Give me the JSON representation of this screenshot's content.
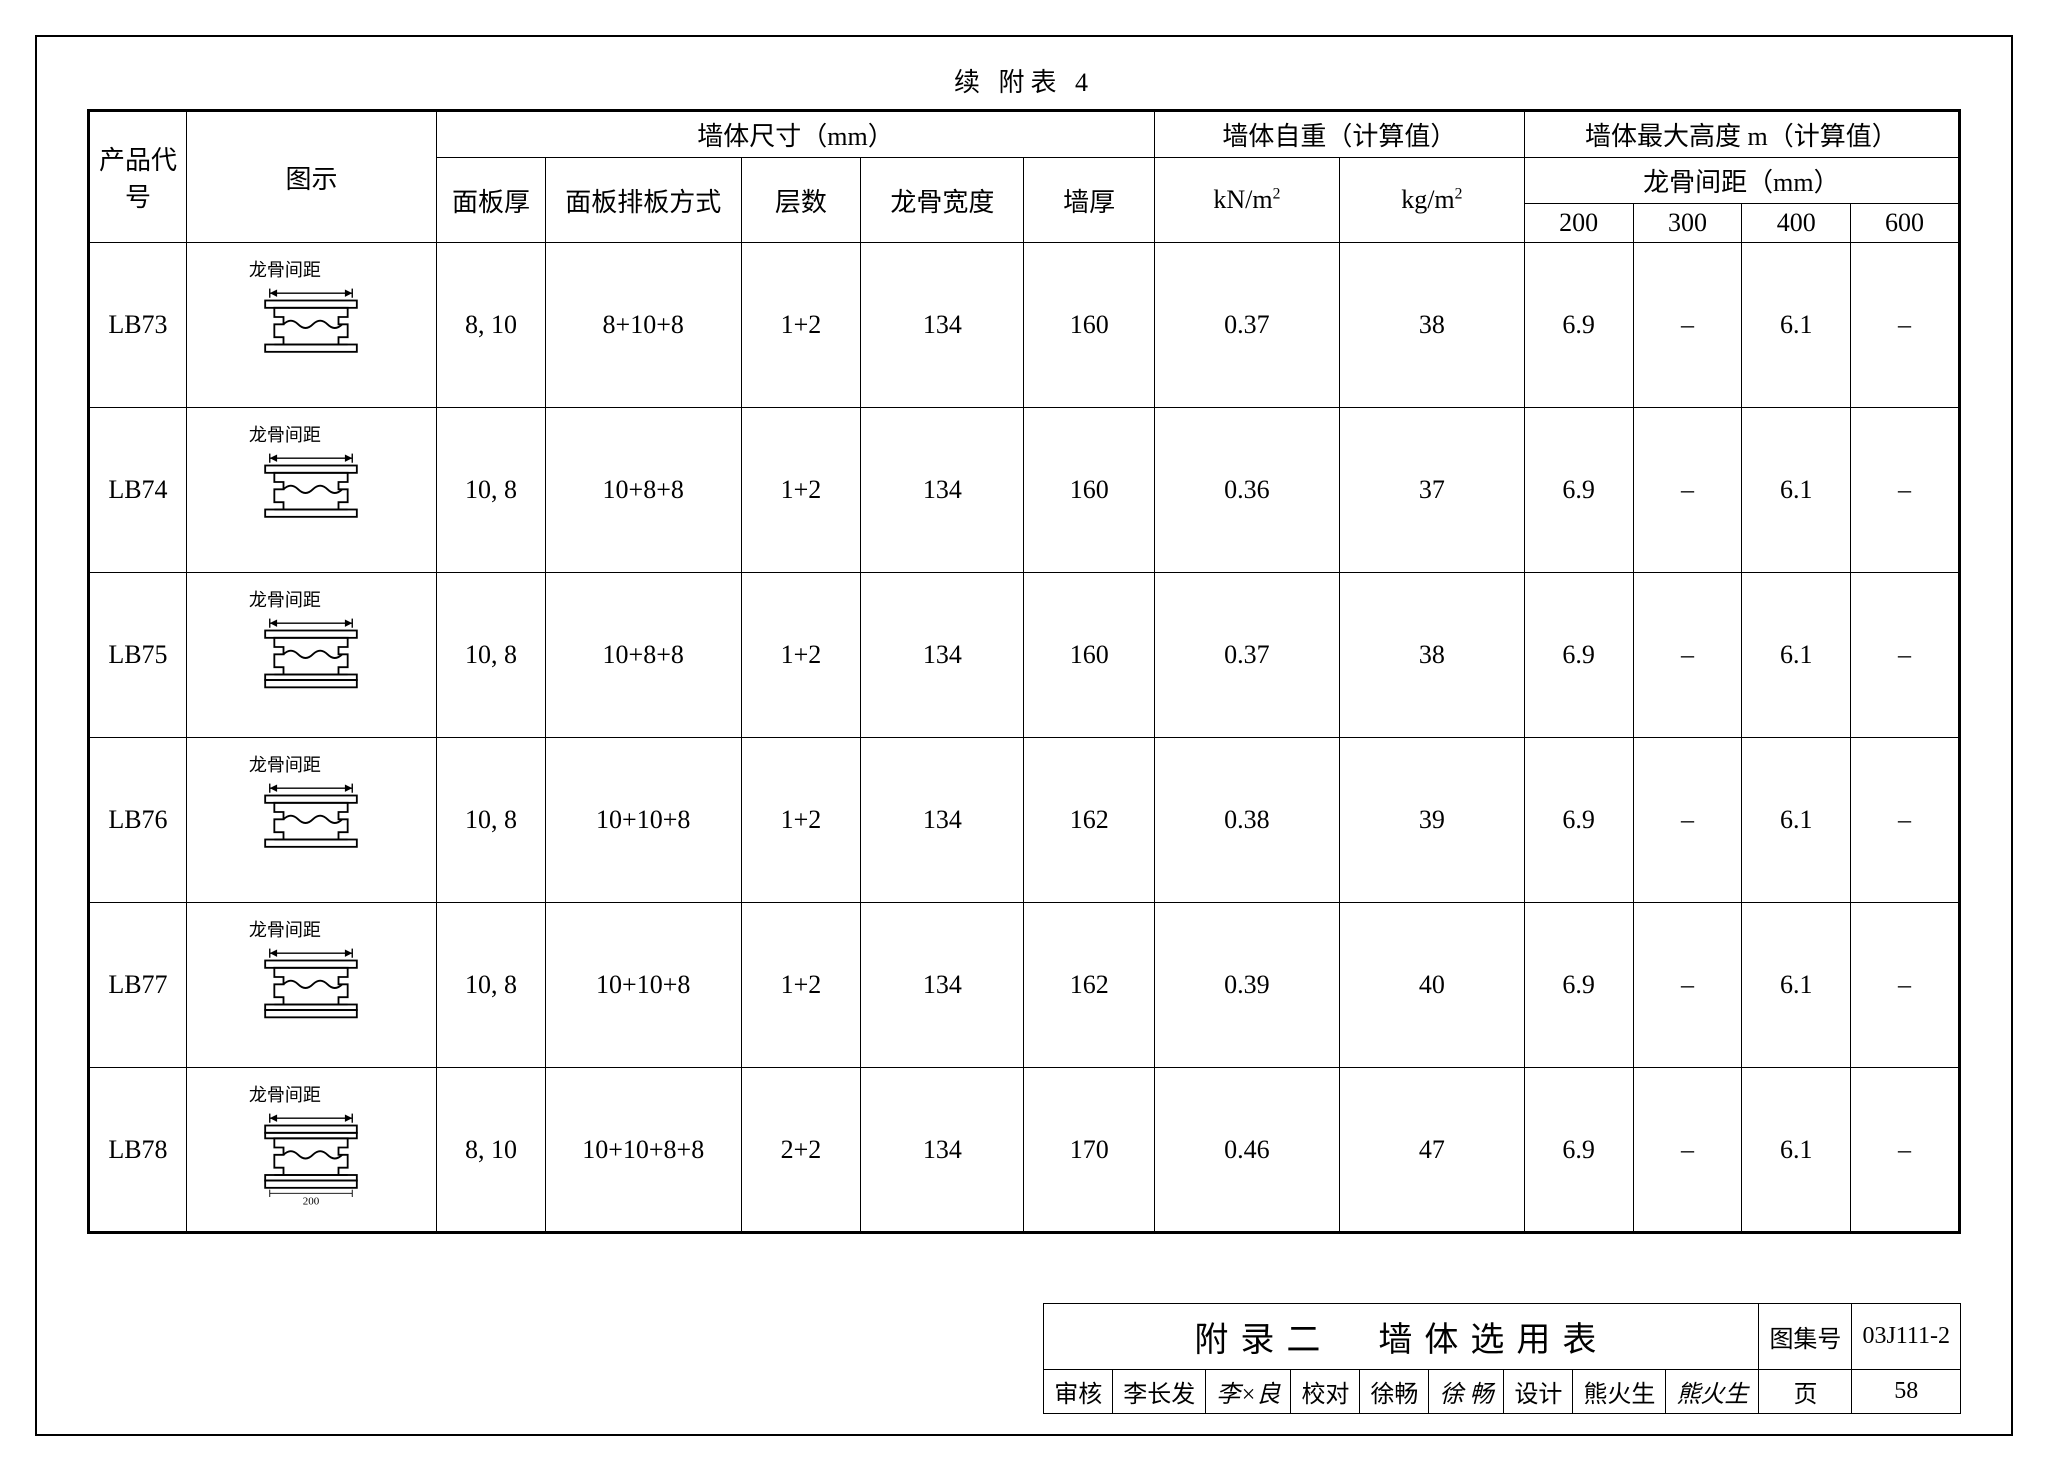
{
  "caption": "续 附表 4",
  "headers": {
    "code": "产品代号",
    "diagram": "图示",
    "dim_group": "墙体尺寸（mm）",
    "panel_thickness": "面板厚",
    "panel_arrangement": "面板排板方式",
    "layers": "层数",
    "keel_width": "龙骨宽度",
    "wall_thickness": "墙厚",
    "self_weight_group": "墙体自重（计算值）",
    "kn_m2": "kN/m²",
    "kg_m2": "kg/m²",
    "max_height_group": "墙体最大高度 m（计算值）",
    "keel_spacing_group": "龙骨间距（mm）",
    "s200": "200",
    "s300": "300",
    "s400": "400",
    "s600": "600"
  },
  "rows": [
    {
      "code": "LB73",
      "diagram_label": "龙骨间距",
      "diagram_variant": "single-top",
      "dim_note": "",
      "panel_thickness": "8, 10",
      "panel_arrangement": "8+10+8",
      "layers": "1+2",
      "keel_width": "134",
      "wall_thickness": "160",
      "kn_m2": "0.37",
      "kg_m2": "38",
      "s200": "6.9",
      "s300": "–",
      "s400": "6.1",
      "s600": "–"
    },
    {
      "code": "LB74",
      "diagram_label": "龙骨间距",
      "diagram_variant": "single-top",
      "dim_note": "",
      "panel_thickness": "10, 8",
      "panel_arrangement": "10+8+8",
      "layers": "1+2",
      "keel_width": "134",
      "wall_thickness": "160",
      "kn_m2": "0.36",
      "kg_m2": "37",
      "s200": "6.9",
      "s300": "–",
      "s400": "6.1",
      "s600": "–"
    },
    {
      "code": "LB75",
      "diagram_label": "龙骨间距",
      "diagram_variant": "double-bottom",
      "dim_note": "",
      "panel_thickness": "10, 8",
      "panel_arrangement": "10+8+8",
      "layers": "1+2",
      "keel_width": "134",
      "wall_thickness": "160",
      "kn_m2": "0.37",
      "kg_m2": "38",
      "s200": "6.9",
      "s300": "–",
      "s400": "6.1",
      "s600": "–"
    },
    {
      "code": "LB76",
      "diagram_label": "龙骨间距",
      "diagram_variant": "single-top",
      "dim_note": "",
      "panel_thickness": "10, 8",
      "panel_arrangement": "10+10+8",
      "layers": "1+2",
      "keel_width": "134",
      "wall_thickness": "162",
      "kn_m2": "0.38",
      "kg_m2": "39",
      "s200": "6.9",
      "s300": "–",
      "s400": "6.1",
      "s600": "–"
    },
    {
      "code": "LB77",
      "diagram_label": "龙骨间距",
      "diagram_variant": "double-bottom",
      "dim_note": "",
      "panel_thickness": "10, 8",
      "panel_arrangement": "10+10+8",
      "layers": "1+2",
      "keel_width": "134",
      "wall_thickness": "162",
      "kn_m2": "0.39",
      "kg_m2": "40",
      "s200": "6.9",
      "s300": "–",
      "s400": "6.1",
      "s600": "–"
    },
    {
      "code": "LB78",
      "diagram_label": "龙骨间距",
      "diagram_variant": "double-both-200",
      "dim_note": "200",
      "panel_thickness": "8, 10",
      "panel_arrangement": "10+10+8+8",
      "layers": "2+2",
      "keel_width": "134",
      "wall_thickness": "170",
      "kn_m2": "0.46",
      "kg_m2": "47",
      "s200": "6.9",
      "s300": "–",
      "s400": "6.1",
      "s600": "–"
    }
  ],
  "title_block": {
    "title": "附录二　墙体选用表",
    "atlas_label": "图集号",
    "atlas_value": "03J111-2",
    "review_label": "审核",
    "reviewer": "李长发",
    "review_sig": "李×良",
    "check_label": "校对",
    "checker": "徐畅",
    "check_sig": "徐 畅",
    "design_label": "设计",
    "designer": "熊火生",
    "design_sig": "熊火生",
    "page_label": "页",
    "page_value": "58"
  },
  "style": {
    "border_color": "#000000",
    "background_color": "#ffffff",
    "font_size_caption": 26,
    "font_size_cell": 26,
    "font_size_title": 34
  }
}
